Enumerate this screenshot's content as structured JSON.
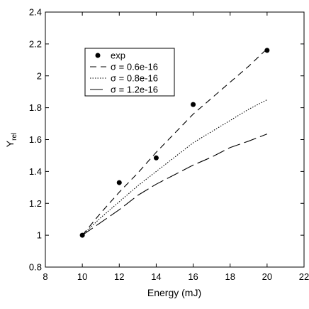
{
  "chart_data": {
    "type": "line",
    "xlabel": "Energy (mJ)",
    "ylabel": {
      "main": "Y",
      "sub": "rel"
    },
    "xlim": [
      8,
      22
    ],
    "ylim": [
      0.8,
      2.4
    ],
    "xticks": [
      "8",
      "10",
      "12",
      "14",
      "16",
      "18",
      "20",
      "22"
    ],
    "yticks": [
      "0.8",
      "1",
      "1.2",
      "1.4",
      "1.6",
      "1.8",
      "2",
      "2.2",
      "2.4"
    ],
    "grid": false,
    "legend_position": "upper-left",
    "series": [
      {
        "name": "exp",
        "style": "markers",
        "x": [
          10,
          12,
          14,
          16,
          20
        ],
        "y": [
          1.0,
          1.33,
          1.485,
          1.82,
          2.16
        ]
      },
      {
        "name": "σ = 0.6e-16",
        "style": "dashed",
        "x": [
          10,
          11,
          12,
          13,
          14,
          15,
          16,
          17,
          18,
          19,
          20
        ],
        "y": [
          1.0,
          1.14,
          1.27,
          1.39,
          1.52,
          1.64,
          1.76,
          1.86,
          1.96,
          2.06,
          2.17
        ]
      },
      {
        "name": "σ = 0.8e-16",
        "style": "dotted",
        "x": [
          10,
          11,
          12,
          13,
          14,
          15,
          16,
          17,
          18,
          19,
          20
        ],
        "y": [
          1.0,
          1.11,
          1.21,
          1.31,
          1.4,
          1.49,
          1.58,
          1.65,
          1.72,
          1.79,
          1.85
        ]
      },
      {
        "name": "σ = 1.2e-16",
        "style": "longdash",
        "x": [
          10,
          11,
          12,
          13,
          14,
          15,
          16,
          17,
          18,
          19,
          20
        ],
        "y": [
          1.0,
          1.08,
          1.16,
          1.25,
          1.32,
          1.38,
          1.44,
          1.49,
          1.55,
          1.59,
          1.635
        ]
      }
    ]
  }
}
